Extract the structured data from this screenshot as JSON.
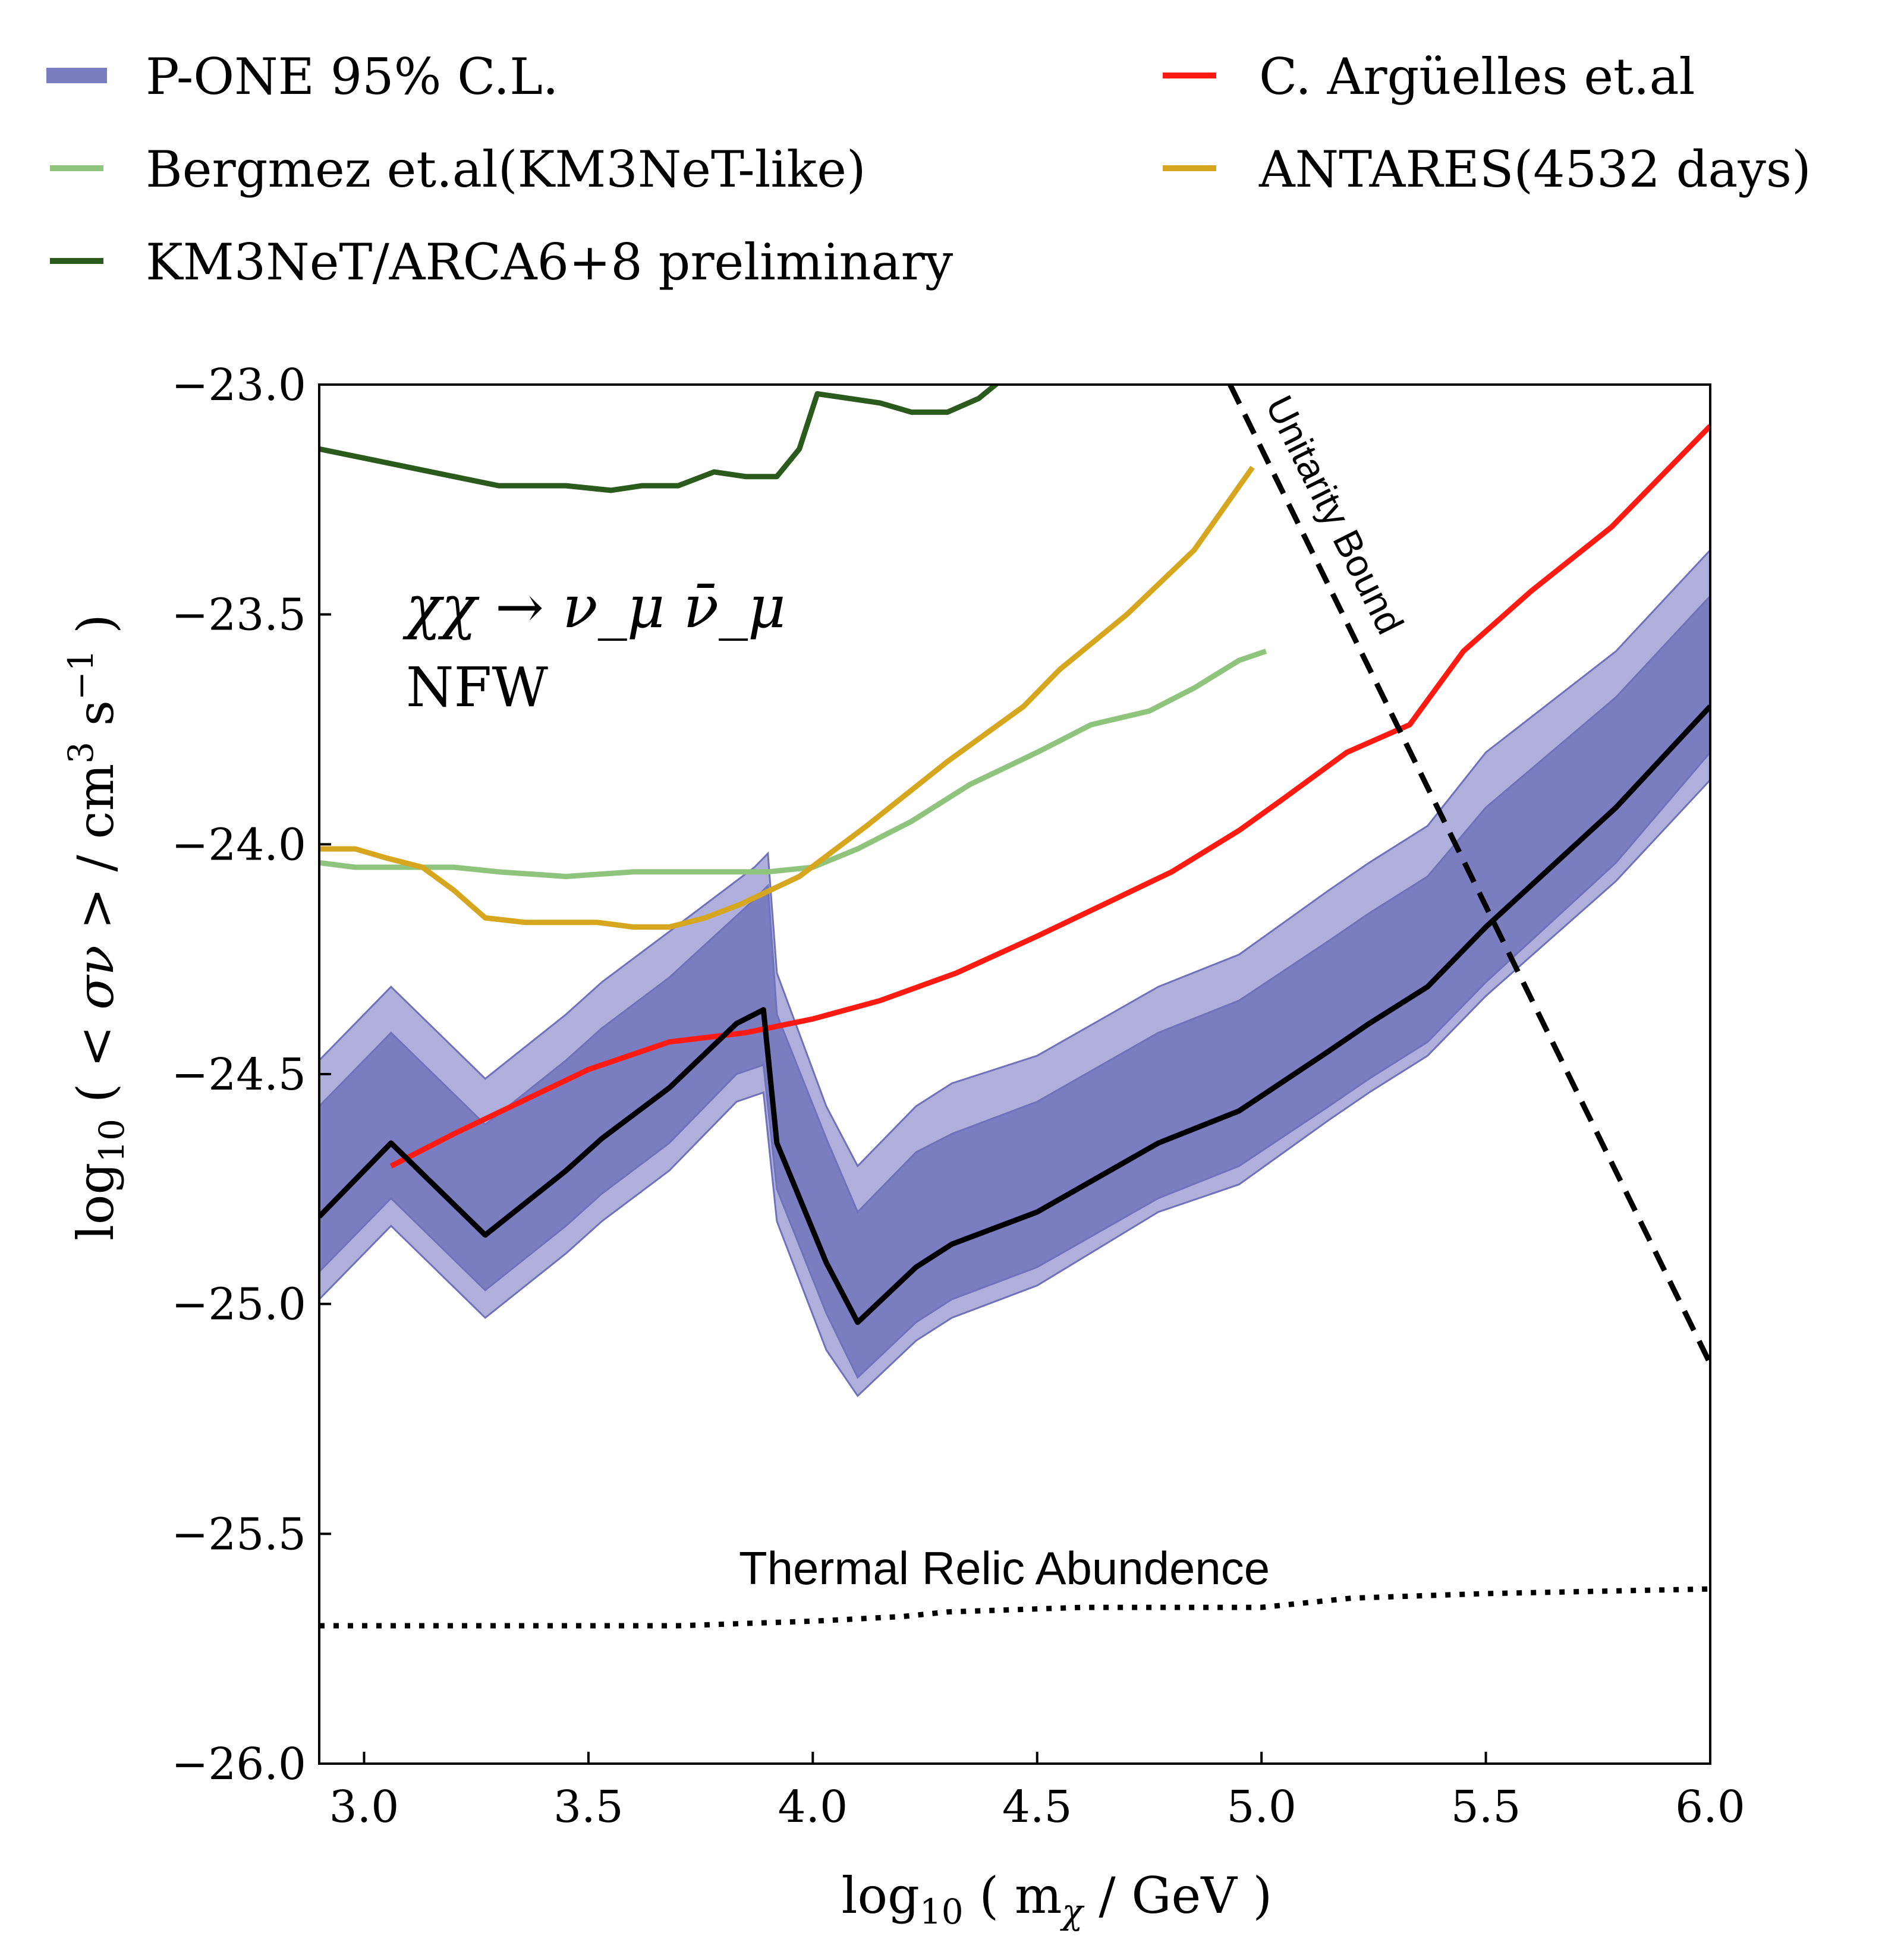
{
  "colors": {
    "band_outer": "#aeb0db",
    "band_inner": "#7b7dc1",
    "band_edge": "#6f72bb",
    "median": "#000000",
    "arguelles": "#ff1a12",
    "antares": "#d6a61e",
    "bergmez": "#8fc47d",
    "km3net": "#2a5a1c",
    "unitarity": "#000000",
    "thermal": "#000000"
  },
  "legend": {
    "pone": "P-ONE 95% C.L.",
    "bergmez": "Bergmez et.al(KM3NeT-like)",
    "km3net": "KM3NeT/ARCA6+8 preliminary",
    "arguelles": "C. Argüelles et.al",
    "antares": "ANTARES(4532 days)"
  },
  "annotations": {
    "process": "χχ → ν_μ ν̄_μ",
    "profile": "NFW",
    "unitarity": "Unitarity Bound",
    "thermal": "Thermal Relic Abundence"
  },
  "chart_data": {
    "type": "line",
    "xlabel": "log10 ( m_χ / GeV )",
    "ylabel": "log10 ( < σν > / cm^3 s^-1 )",
    "xlim": [
      2.9,
      6.0
    ],
    "ylim": [
      -26.0,
      -23.0
    ],
    "xticks": [
      3.0,
      3.5,
      4.0,
      4.5,
      5.0,
      5.5,
      6.0
    ],
    "xtick_labels": [
      "3.0",
      "3.5",
      "4.0",
      "4.5",
      "5.0",
      "5.5",
      "6.0"
    ],
    "yticks": [
      -23.0,
      -23.5,
      -24.0,
      -24.5,
      -25.0,
      -25.5,
      -26.0
    ],
    "ytick_labels": [
      "−23.0",
      "−23.5",
      "−24.0",
      "−24.5",
      "−25.0",
      "−25.5",
      "−26.0"
    ],
    "series": [
      {
        "name": "P-ONE 95% C.L. median",
        "x": [
          2.9,
          3.06,
          3.27,
          3.45,
          3.53,
          3.68,
          3.83,
          3.89,
          3.92,
          4.03,
          4.1,
          4.23,
          4.31,
          4.5,
          4.77,
          4.95,
          5.15,
          5.24,
          5.37,
          5.5,
          5.79,
          6.0
        ],
        "y": [
          -24.81,
          -24.65,
          -24.85,
          -24.71,
          -24.64,
          -24.53,
          -24.39,
          -24.36,
          -24.65,
          -24.91,
          -25.04,
          -24.92,
          -24.87,
          -24.8,
          -24.65,
          -24.58,
          -24.45,
          -24.39,
          -24.31,
          -24.18,
          -23.92,
          -23.7
        ]
      },
      {
        "name": "P-ONE band inner upper",
        "x": [
          2.9,
          3.06,
          3.27,
          3.45,
          3.53,
          3.68,
          3.87,
          3.9,
          3.92,
          4.03,
          4.1,
          4.23,
          4.31,
          4.5,
          4.77,
          4.95,
          5.15,
          5.24,
          5.37,
          5.5,
          5.79,
          6.0
        ],
        "y": [
          -24.57,
          -24.41,
          -24.61,
          -24.47,
          -24.4,
          -24.29,
          -24.12,
          -24.09,
          -24.37,
          -24.64,
          -24.8,
          -24.67,
          -24.63,
          -24.56,
          -24.41,
          -24.34,
          -24.21,
          -24.15,
          -24.07,
          -23.92,
          -23.68,
          -23.46
        ]
      },
      {
        "name": "P-ONE band inner lower",
        "x": [
          2.9,
          3.06,
          3.27,
          3.45,
          3.53,
          3.68,
          3.83,
          3.89,
          3.92,
          4.03,
          4.1,
          4.23,
          4.31,
          4.5,
          4.77,
          4.95,
          5.15,
          5.24,
          5.37,
          5.5,
          5.79,
          6.0
        ],
        "y": [
          -24.93,
          -24.77,
          -24.97,
          -24.83,
          -24.76,
          -24.65,
          -24.5,
          -24.48,
          -24.75,
          -25.02,
          -25.16,
          -25.04,
          -24.99,
          -24.92,
          -24.77,
          -24.7,
          -24.57,
          -24.51,
          -24.43,
          -24.3,
          -24.04,
          -23.8
        ]
      },
      {
        "name": "P-ONE band outer upper",
        "x": [
          2.9,
          3.06,
          3.27,
          3.45,
          3.53,
          3.68,
          3.87,
          3.9,
          3.92,
          4.03,
          4.1,
          4.23,
          4.31,
          4.5,
          4.77,
          4.95,
          5.15,
          5.24,
          5.37,
          5.5,
          5.79,
          6.0
        ],
        "y": [
          -24.47,
          -24.31,
          -24.51,
          -24.37,
          -24.3,
          -24.19,
          -24.05,
          -24.02,
          -24.28,
          -24.57,
          -24.7,
          -24.57,
          -24.52,
          -24.46,
          -24.31,
          -24.24,
          -24.1,
          -24.04,
          -23.96,
          -23.8,
          -23.58,
          -23.36
        ]
      },
      {
        "name": "P-ONE band outer lower",
        "x": [
          2.9,
          3.06,
          3.27,
          3.45,
          3.53,
          3.68,
          3.83,
          3.89,
          3.92,
          4.03,
          4.1,
          4.23,
          4.31,
          4.5,
          4.77,
          4.95,
          5.15,
          5.24,
          5.37,
          5.5,
          5.79,
          6.0
        ],
        "y": [
          -24.99,
          -24.83,
          -25.03,
          -24.89,
          -24.82,
          -24.71,
          -24.56,
          -24.54,
          -24.82,
          -25.1,
          -25.2,
          -25.08,
          -25.03,
          -24.96,
          -24.8,
          -24.74,
          -24.6,
          -24.54,
          -24.46,
          -24.33,
          -24.08,
          -23.86
        ]
      },
      {
        "name": "C. Argüelles et.al",
        "x": [
          3.06,
          3.2,
          3.35,
          3.5,
          3.68,
          3.85,
          4.0,
          4.15,
          4.32,
          4.5,
          4.65,
          4.8,
          4.95,
          5.05,
          5.19,
          5.33,
          5.45,
          5.6,
          5.78,
          6.0
        ],
        "y": [
          -24.7,
          -24.63,
          -24.56,
          -24.49,
          -24.43,
          -24.41,
          -24.38,
          -24.34,
          -24.28,
          -24.2,
          -24.13,
          -24.06,
          -23.97,
          -23.9,
          -23.8,
          -23.74,
          -23.58,
          -23.45,
          -23.31,
          -23.09
        ]
      },
      {
        "name": "ANTARES(4532 days)",
        "x": [
          2.9,
          2.98,
          3.05,
          3.13,
          3.2,
          3.27,
          3.36,
          3.44,
          3.52,
          3.6,
          3.68,
          3.76,
          3.84,
          3.97,
          4.12,
          4.3,
          4.47,
          4.55,
          4.7,
          4.85,
          4.98
        ],
        "y": [
          -24.01,
          -24.01,
          -24.03,
          -24.05,
          -24.1,
          -24.16,
          -24.17,
          -24.17,
          -24.17,
          -24.18,
          -24.18,
          -24.16,
          -24.13,
          -24.07,
          -23.96,
          -23.82,
          -23.7,
          -23.62,
          -23.5,
          -23.36,
          -23.18
        ]
      },
      {
        "name": "Bergmez et.al(KM3NeT-like)",
        "x": [
          2.9,
          2.98,
          3.1,
          3.2,
          3.3,
          3.45,
          3.6,
          3.75,
          3.9,
          4.0,
          4.1,
          4.22,
          4.35,
          4.5,
          4.62,
          4.75,
          4.85,
          4.95,
          5.01
        ],
        "y": [
          -24.04,
          -24.05,
          -24.05,
          -24.05,
          -24.06,
          -24.07,
          -24.06,
          -24.06,
          -24.06,
          -24.05,
          -24.01,
          -23.95,
          -23.87,
          -23.8,
          -23.74,
          -23.71,
          -23.66,
          -23.6,
          -23.58
        ]
      },
      {
        "name": "KM3NeT/ARCA6+8 preliminary",
        "x": [
          2.9,
          3.0,
          3.1,
          3.2,
          3.3,
          3.37,
          3.45,
          3.55,
          3.62,
          3.7,
          3.78,
          3.85,
          3.92,
          3.97,
          4.01,
          4.08,
          4.15,
          4.22,
          4.3,
          4.37,
          4.42
        ],
        "y": [
          -23.14,
          -23.16,
          -23.18,
          -23.2,
          -23.22,
          -23.22,
          -23.22,
          -23.23,
          -23.22,
          -23.22,
          -23.19,
          -23.2,
          -23.2,
          -23.14,
          -23.02,
          -23.03,
          -23.04,
          -23.06,
          -23.06,
          -23.03,
          -22.99
        ]
      },
      {
        "name": "Unitarity Bound",
        "x": [
          4.93,
          6.0
        ],
        "y": [
          -23.0,
          -25.13
        ]
      },
      {
        "name": "Thermal Relic Abundence",
        "x": [
          2.9,
          3.5,
          3.7,
          4.0,
          4.2,
          4.3,
          4.6,
          5.0,
          5.2,
          5.5,
          6.0
        ],
        "y": [
          -25.7,
          -25.7,
          -25.7,
          -25.69,
          -25.68,
          -25.67,
          -25.66,
          -25.66,
          -25.64,
          -25.63,
          -25.62
        ]
      }
    ]
  }
}
